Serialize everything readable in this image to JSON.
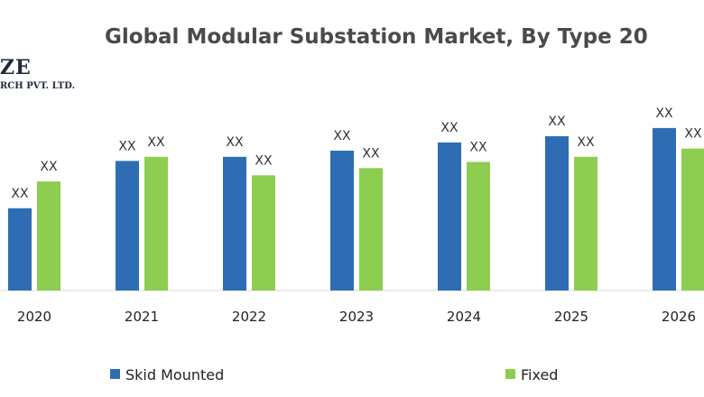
{
  "logo": {
    "main": "ZE",
    "sub": "RCH PVT. LTD."
  },
  "chart_data": {
    "type": "bar",
    "title": "Global Modular Substation Market, By Type 20",
    "categories": [
      "2020",
      "2021",
      "2022",
      "2023",
      "2024",
      "2025",
      "2026"
    ],
    "series": [
      {
        "name": "Skid Mounted",
        "color": "#2e6db4",
        "values": [
          80,
          126,
          130,
          136,
          144,
          150,
          158
        ],
        "labels": [
          "XX",
          "XX",
          "XX",
          "XX",
          "XX",
          "XX",
          "XX"
        ]
      },
      {
        "name": "Fixed",
        "color": "#8dcd4f",
        "values": [
          106,
          130,
          112,
          119,
          125,
          130,
          138
        ],
        "labels": [
          "XX",
          "XX",
          "XX",
          "XX",
          "XX",
          "XX",
          "XX"
        ]
      }
    ],
    "xlabel": "",
    "ylabel": "",
    "ylim": [
      0,
      200
    ],
    "grid": false,
    "legend": "bottom"
  }
}
